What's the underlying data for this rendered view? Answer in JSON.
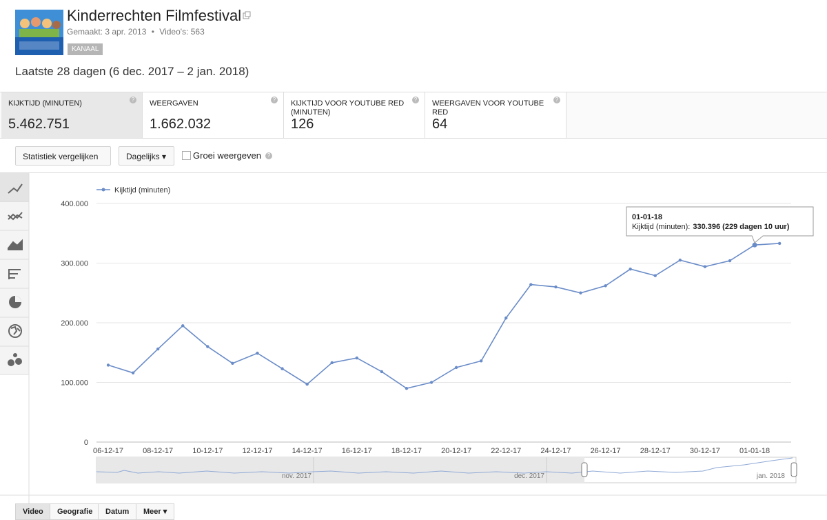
{
  "header": {
    "title": "Kinderrechten Filmfestival",
    "created": "Gemaakt: 3 apr. 2013",
    "separator": "•",
    "videos": "Video's: 563",
    "badge": "KANAAL"
  },
  "period": "Laatste 28 dagen (6 dec. 2017 – 2 jan. 2018)",
  "metrics": [
    {
      "label": "KIJKTIJD (MINUTEN)",
      "value": "5.462.751"
    },
    {
      "label": "WEERGAVEN",
      "value": "1.662.032"
    },
    {
      "label": "KIJKTIJD VOOR YOUTUBE RED (MINUTEN)",
      "value": "126"
    },
    {
      "label": "WEERGAVEN VOOR YOUTUBE RED",
      "value": "64"
    }
  ],
  "controls": {
    "compare": "Statistiek vergelijken",
    "interval": "Dagelijks",
    "growth": "Groei weergeven"
  },
  "chart_data": {
    "type": "line",
    "categories": [
      "06-12-17",
      null,
      "08-12-17",
      null,
      "10-12-17",
      null,
      "12-12-17",
      null,
      "14-12-17",
      null,
      "16-12-17",
      null,
      "18-12-17",
      null,
      "20-12-17",
      null,
      "22-12-17",
      null,
      "24-12-17",
      null,
      "26-12-17",
      null,
      "28-12-17",
      null,
      "30-12-17",
      null,
      "01-01-18",
      null
    ],
    "series": [
      {
        "name": "Kijktijd (minuten)",
        "color": "#6a8cc8",
        "values": [
          129000,
          116000,
          156000,
          195000,
          160000,
          132000,
          149000,
          123000,
          97000,
          133000,
          141000,
          118000,
          90000,
          100000,
          125000,
          136000,
          208000,
          264000,
          260000,
          250000,
          262000,
          290000,
          279000,
          305000,
          294000,
          304000,
          330396,
          333000
        ]
      }
    ],
    "ylim": [
      0,
      400000
    ],
    "yticks": [
      0,
      {
        "value": 100000,
        "label": "100.000"
      },
      {
        "value": 200000,
        "label": "200.000"
      },
      {
        "value": 300000,
        "label": "300.000"
      },
      {
        "value": 400000,
        "label": "400.000"
      }
    ],
    "grid": true,
    "legend": "top-left",
    "tooltip": {
      "index": 26,
      "title": "01-01-18",
      "label": "Kijktijd (minuten):",
      "value": "330.396 (229 dagen 10 uur)"
    },
    "navigator": [
      "nov. 2017",
      "dec. 2017",
      "jan. 2018"
    ]
  },
  "tabs": [
    "Video",
    "Geografie",
    "Datum",
    "Meer"
  ]
}
